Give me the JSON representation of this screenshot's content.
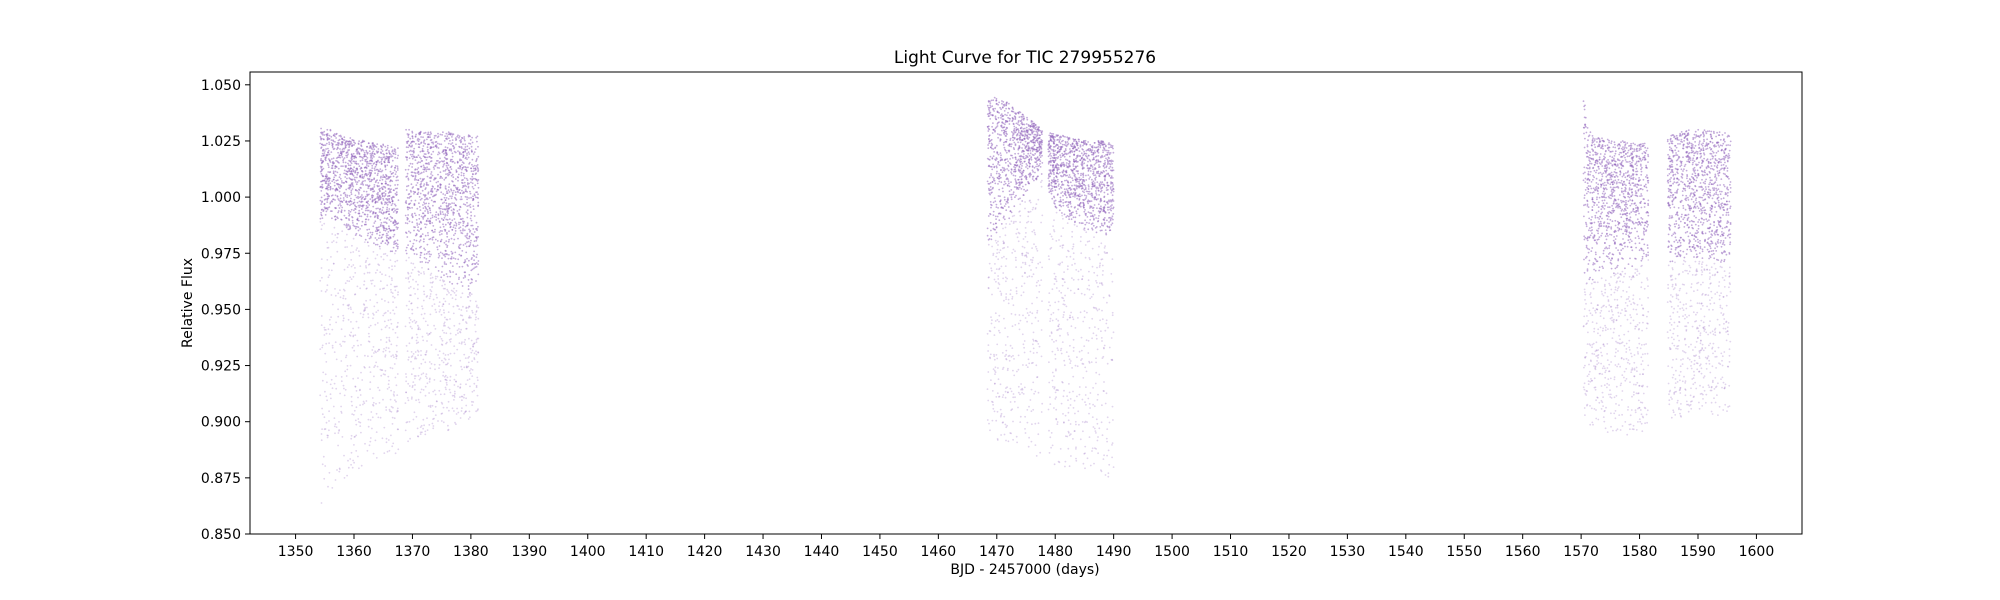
{
  "chart_data": {
    "type": "scatter",
    "title": "Light Curve for TIC 279955276",
    "xlabel": "BJD - 2457000 (days)",
    "ylabel": "Relative Flux",
    "xlim": [
      1342.2,
      1607.8
    ],
    "ylim": [
      0.85,
      1.0557
    ],
    "x_ticks": [
      1350,
      1360,
      1370,
      1380,
      1390,
      1400,
      1410,
      1420,
      1430,
      1440,
      1450,
      1460,
      1470,
      1480,
      1490,
      1500,
      1510,
      1520,
      1530,
      1540,
      1550,
      1560,
      1570,
      1580,
      1590,
      1600
    ],
    "y_ticks": [
      0.85,
      0.875,
      0.9,
      0.925,
      0.95,
      0.975,
      1.0,
      1.025,
      1.05
    ],
    "y_tick_labels": [
      "0.850",
      "0.875",
      "0.900",
      "0.925",
      "0.950",
      "0.975",
      "1.000",
      "1.025",
      "1.050"
    ],
    "grid": false,
    "legend": "none",
    "color": "#9467bd",
    "series": [
      {
        "segments": [
          {
            "x": [
              1354.2,
              1356.0,
              1358.0,
              1360.0,
              1362.0,
              1364.0,
              1366.0,
              1367.6
            ],
            "upper": [
              1.031,
              1.03,
              1.027,
              1.026,
              1.025,
              1.024,
              1.023,
              1.022
            ],
            "core_low": [
              0.99,
              0.99,
              0.986,
              0.983,
              0.98,
              0.978,
              0.976,
              0.975
            ],
            "lower": [
              0.862,
              0.868,
              0.873,
              0.877,
              0.881,
              0.883,
              0.884,
              0.885
            ]
          },
          {
            "x": [
              1368.8,
              1370.0,
              1372.0,
              1374.0,
              1376.0,
              1378.0,
              1380.0,
              1381.3
            ],
            "upper": [
              1.03,
              1.03,
              1.029,
              1.029,
              1.029,
              1.028,
              1.028,
              1.027
            ],
            "core_low": [
              0.974,
              0.972,
              0.968,
              0.965,
              0.962,
              0.96,
              0.957,
              0.955
            ],
            "lower": [
              0.887,
              0.889,
              0.892,
              0.894,
              0.896,
              0.898,
              0.901,
              0.903
            ]
          },
          {
            "x": [
              1468.4,
              1470.0,
              1472.0,
              1474.0,
              1476.0,
              1477.8
            ],
            "upper": [
              1.043,
              1.045,
              1.042,
              1.038,
              1.034,
              1.03
            ],
            "core_low": [
              0.98,
              0.982,
              0.99,
              0.998,
              1.005,
              1.01
            ],
            "lower": [
              0.895,
              0.892,
              0.889,
              0.887,
              0.885,
              0.883
            ]
          },
          {
            "x": [
              1478.8,
              1480.0,
              1482.0,
              1484.0,
              1486.0,
              1488.0,
              1490.0
            ],
            "upper": [
              1.029,
              1.028,
              1.027,
              1.026,
              1.025,
              1.025,
              1.024
            ],
            "core_low": [
              1.003,
              0.995,
              0.99,
              0.987,
              0.985,
              0.983,
              0.982
            ],
            "lower": [
              0.882,
              0.88,
              0.879,
              0.878,
              0.877,
              0.876,
              0.875
            ]
          },
          {
            "x": [
              1570.4,
              1571.0,
              1572.0,
              1574.0,
              1576.0,
              1578.0,
              1580.0,
              1581.5
            ],
            "upper": [
              1.047,
              1.033,
              1.027,
              1.026,
              1.025,
              1.025,
              1.024,
              1.024
            ],
            "core_low": [
              0.962,
              0.963,
              0.963,
              0.965,
              0.966,
              0.968,
              0.97,
              0.972
            ],
            "lower": [
              0.902,
              0.899,
              0.897,
              0.895,
              0.894,
              0.894,
              0.895,
              0.896
            ]
          },
          {
            "x": [
              1584.8,
              1586.0,
              1588.0,
              1590.0,
              1592.0,
              1594.0,
              1595.6
            ],
            "upper": [
              1.027,
              1.028,
              1.03,
              1.03,
              1.03,
              1.029,
              1.028
            ],
            "core_low": [
              0.97,
              0.971,
              0.973,
              0.972,
              0.971,
              0.97,
              0.97
            ],
            "lower": [
              0.897,
              0.899,
              0.903,
              0.906,
              0.904,
              0.901,
              0.898
            ]
          }
        ]
      }
    ]
  }
}
